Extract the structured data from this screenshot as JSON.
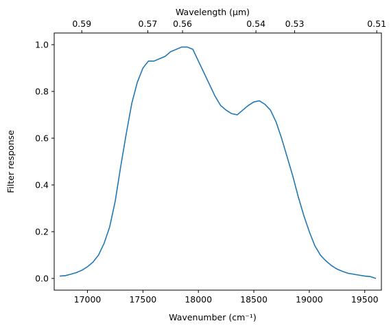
{
  "chart_data": {
    "type": "line",
    "title": "",
    "xlabel": "Wavenumber (cm⁻¹)",
    "ylabel": "Filter response",
    "top_xlabel": "Wavelength (μm)",
    "xlim": [
      16700,
      19650
    ],
    "ylim": [
      -0.05,
      1.05
    ],
    "x_ticks": [
      17000,
      17500,
      18000,
      18500,
      19000,
      19500
    ],
    "y_ticks": [
      0.0,
      0.2,
      0.4,
      0.6,
      0.8,
      1.0
    ],
    "y_tick_labels": [
      "0.0",
      "0.2",
      "0.4",
      "0.6",
      "0.8",
      "1.0"
    ],
    "top_ticks": [
      {
        "label": "0.59",
        "x": 16949
      },
      {
        "label": "0.57",
        "x": 17544
      },
      {
        "label": "0.56",
        "x": 17857
      },
      {
        "label": "0.54",
        "x": 18519
      },
      {
        "label": "0.53",
        "x": 18868
      },
      {
        "label": "0.51",
        "x": 19608
      }
    ],
    "line_color": "#1f77b4",
    "grid": false,
    "series": [
      {
        "x": [
          16750,
          16800,
          16850,
          16900,
          16950,
          17000,
          17050,
          17100,
          17150,
          17200,
          17250,
          17300,
          17350,
          17400,
          17450,
          17500,
          17550,
          17600,
          17650,
          17700,
          17750,
          17800,
          17850,
          17900,
          17950,
          18000,
          18050,
          18100,
          18150,
          18200,
          18250,
          18300,
          18350,
          18400,
          18450,
          18500,
          18550,
          18600,
          18650,
          18700,
          18750,
          18800,
          18850,
          18900,
          18950,
          19000,
          19050,
          19100,
          19150,
          19200,
          19250,
          19300,
          19350,
          19400,
          19450,
          19500,
          19550,
          19600
        ],
        "y": [
          0.01,
          0.012,
          0.018,
          0.025,
          0.035,
          0.05,
          0.07,
          0.1,
          0.15,
          0.22,
          0.33,
          0.48,
          0.62,
          0.75,
          0.84,
          0.9,
          0.93,
          0.93,
          0.94,
          0.95,
          0.97,
          0.98,
          0.99,
          0.99,
          0.98,
          0.93,
          0.88,
          0.83,
          0.78,
          0.74,
          0.72,
          0.705,
          0.7,
          0.72,
          0.74,
          0.755,
          0.76,
          0.745,
          0.72,
          0.67,
          0.6,
          0.52,
          0.44,
          0.35,
          0.27,
          0.2,
          0.14,
          0.1,
          0.075,
          0.055,
          0.04,
          0.03,
          0.022,
          0.018,
          0.014,
          0.01,
          0.008,
          0.0
        ]
      }
    ]
  }
}
